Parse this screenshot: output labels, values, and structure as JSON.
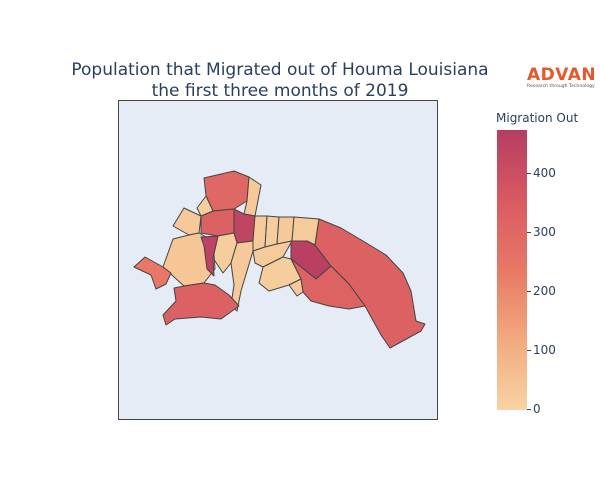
{
  "title": {
    "line1": "Population that Migrated out of Houma Louisiana",
    "line2": "the first three months of 2019"
  },
  "logo": {
    "name": "ADVAN",
    "tagline": "Research through Technology",
    "color": "#e8572a"
  },
  "colorbar": {
    "title": "Migration Out",
    "ticks": [
      "0",
      "100",
      "200",
      "300",
      "400"
    ],
    "tick_values": [
      0,
      100,
      200,
      300,
      400
    ],
    "range": [
      0,
      475
    ],
    "colorscale": [
      "#f7d4a3",
      "#f3a97f",
      "#e87866",
      "#d85a62",
      "#b63c63"
    ]
  },
  "map": {
    "background": "#e5ecf6",
    "regions": [
      {
        "name": "north-top",
        "value": 300
      },
      {
        "name": "north-right-strip",
        "value": 30
      },
      {
        "name": "west-small",
        "value": 30
      },
      {
        "name": "center-west-a",
        "value": 330
      },
      {
        "name": "center-west-b",
        "value": 20
      },
      {
        "name": "center-dark",
        "value": 440
      },
      {
        "name": "center-strip-1",
        "value": 25
      },
      {
        "name": "center-strip-2",
        "value": 20
      },
      {
        "name": "center-strip-3",
        "value": 30
      },
      {
        "name": "center-strip-4",
        "value": 25
      },
      {
        "name": "center-strip-5",
        "value": 20
      },
      {
        "name": "west-large",
        "value": 40
      },
      {
        "name": "far-west",
        "value": 240
      },
      {
        "name": "central-dark-slim",
        "value": 450
      },
      {
        "name": "central-sliver",
        "value": 30
      },
      {
        "name": "south-central",
        "value": 25
      },
      {
        "name": "south-west",
        "value": 330
      },
      {
        "name": "east-dark",
        "value": 460
      },
      {
        "name": "east-large",
        "value": 330
      },
      {
        "name": "southeast",
        "value": 320
      },
      {
        "name": "south-strip-a",
        "value": 20
      },
      {
        "name": "south-strip-b",
        "value": 30
      }
    ]
  }
}
